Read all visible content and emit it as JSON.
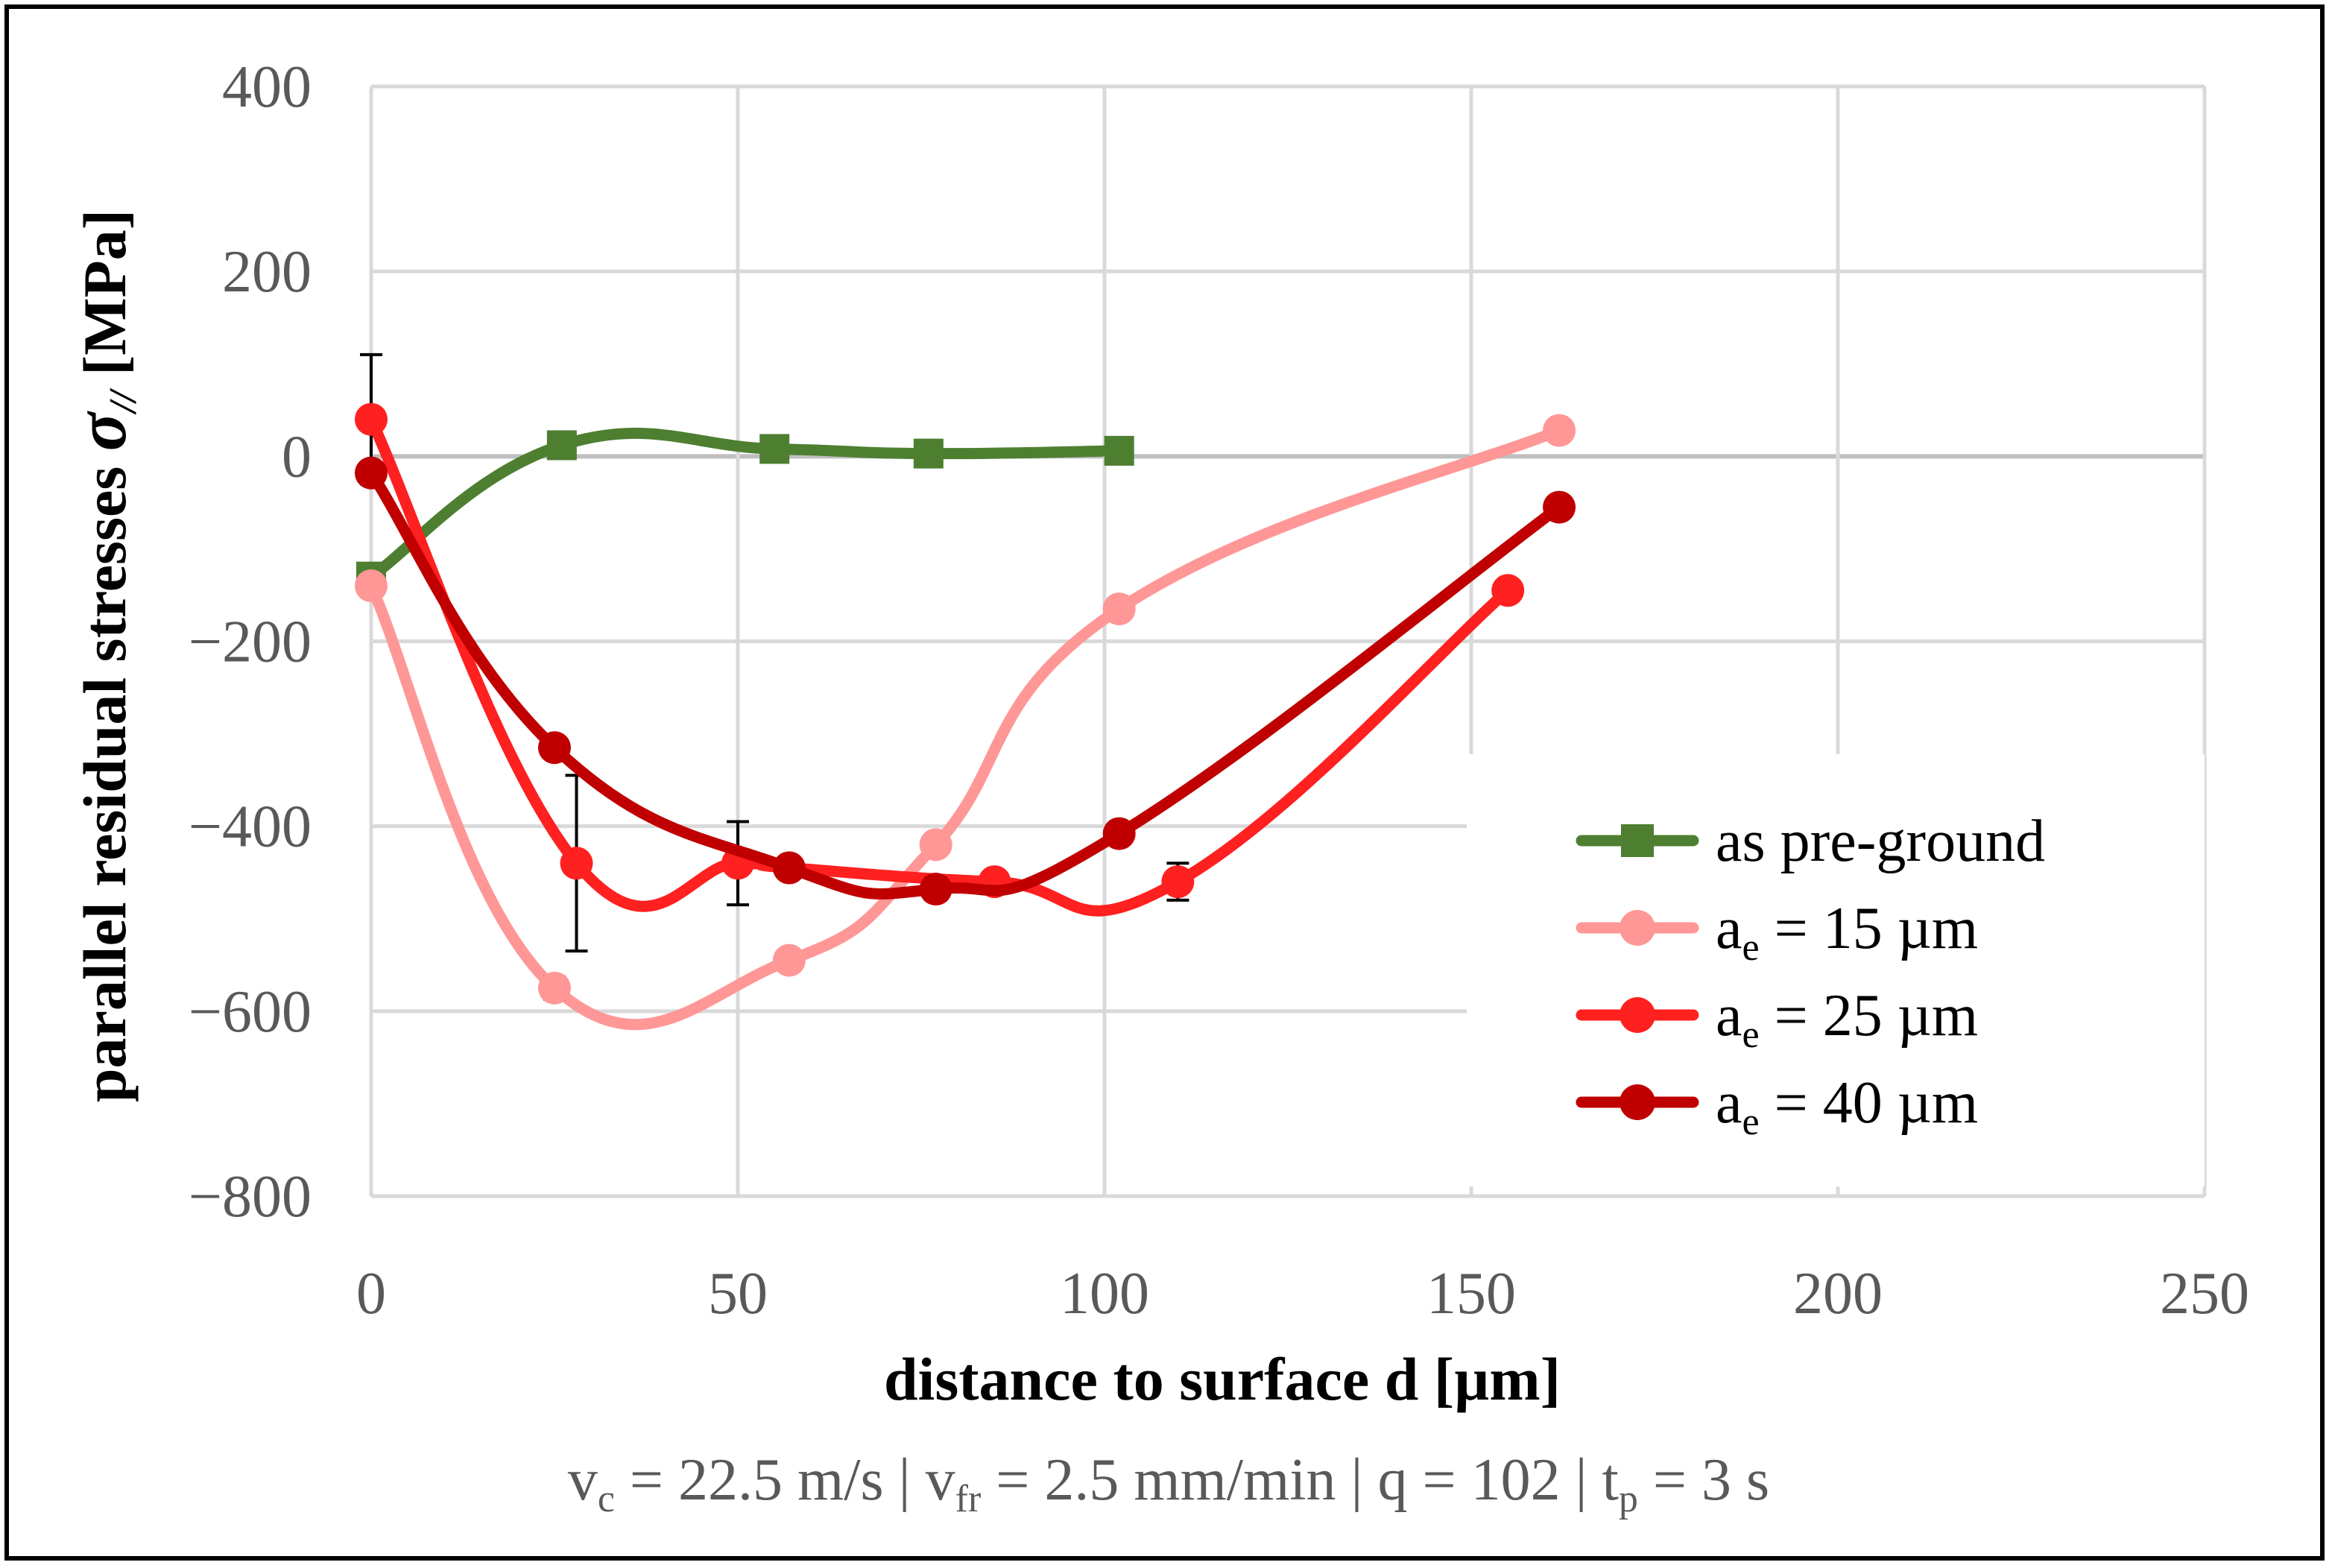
{
  "chart_data": {
    "type": "line",
    "smoothed": true,
    "xlabel": "distance to surface d [µm]",
    "ylabel": "parallel residual stresses",
    "ylabel_symbol": "σ",
    "ylabel_symbol_sub": "//",
    "ylabel_unit": "[MPa]",
    "xlim": [
      0,
      250
    ],
    "ylim": [
      -800,
      400
    ],
    "xticks": [
      0,
      50,
      100,
      150,
      200,
      250
    ],
    "yticks": [
      -800,
      -600,
      -400,
      -200,
      0,
      200,
      400
    ],
    "ytick_labels": [
      "−800",
      "−600",
      "−400",
      "−200",
      "0",
      "200",
      "400"
    ],
    "grid": true,
    "legend_position": "bottom-right",
    "caption": {
      "parts": [
        {
          "t": "v"
        },
        {
          "t": "c",
          "sub": true
        },
        {
          "t": " = 22.5 m/s | v"
        },
        {
          "t": "fr",
          "sub": true
        },
        {
          "t": " = 2.5 mm/min | q = 102 | t"
        },
        {
          "t": "p",
          "sub": true
        },
        {
          "t": " = 3 s"
        }
      ]
    },
    "series": [
      {
        "name": "as pre-ground",
        "label_main": "as pre-ground",
        "label_sub": "",
        "label_tail": "",
        "marker": "square",
        "color": "#4E7F31",
        "x": [
          0,
          26,
          55,
          76,
          102
        ],
        "y": [
          -130,
          12,
          8,
          3,
          6
        ],
        "err": [
          0,
          0,
          0,
          0,
          0
        ]
      },
      {
        "name": "a_e = 15 µm",
        "label_main": "a",
        "label_sub": "e",
        "label_tail": " = 15 µm",
        "marker": "circle",
        "color": "#FF9797",
        "x": [
          0,
          25,
          57,
          77,
          102,
          162
        ],
        "y": [
          -140,
          -575,
          -545,
          -420,
          -165,
          28
        ],
        "err": [
          8,
          12,
          10,
          10,
          8,
          8
        ]
      },
      {
        "name": "a_e = 25 µm",
        "label_main": "a",
        "label_sub": "e",
        "label_tail": " = 25 µm",
        "marker": "circle",
        "color": "#FF2020",
        "x": [
          0,
          28,
          50,
          57,
          85,
          110,
          155
        ],
        "y": [
          40,
          -440,
          -440,
          -445,
          -460,
          -460,
          -145
        ],
        "err": [
          70,
          95,
          45,
          10,
          10,
          20,
          8
        ]
      },
      {
        "name": "a_e = 40 µm",
        "label_main": "a",
        "label_sub": "e",
        "label_tail": " = 40 µm",
        "marker": "circle",
        "color": "#C00000",
        "x": [
          0,
          25,
          57,
          77,
          102,
          162
        ],
        "y": [
          -18,
          -315,
          -445,
          -468,
          -408,
          -55
        ],
        "err": [
          10,
          10,
          10,
          12,
          10,
          8
        ]
      }
    ]
  }
}
